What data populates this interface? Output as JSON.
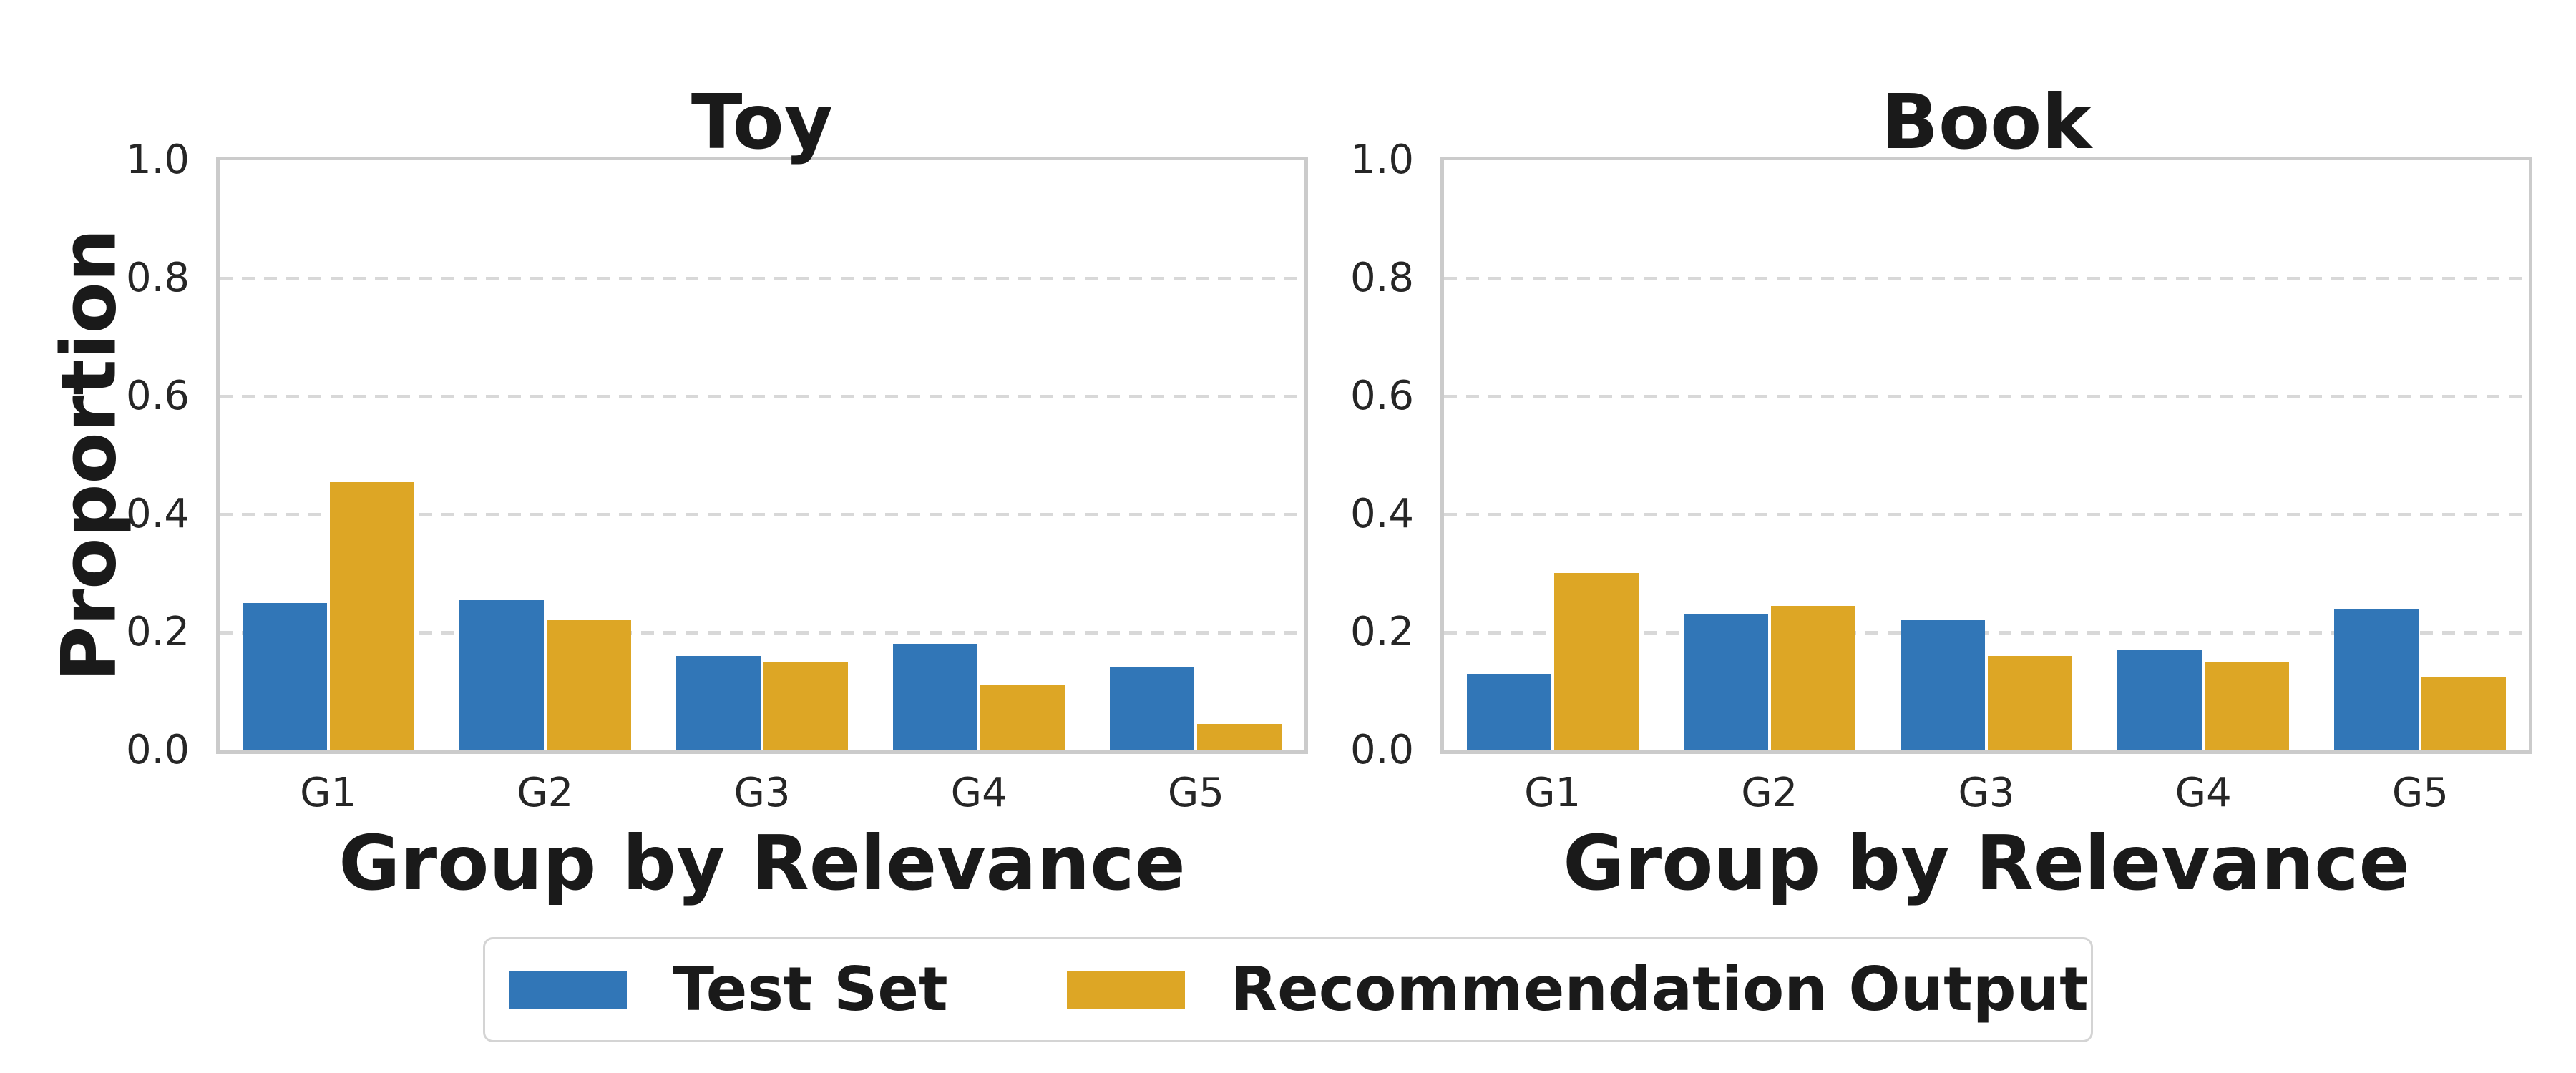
{
  "figure": {
    "background": "#ffffff",
    "text_color": "#1a1a1a",
    "spine_color": "#cbcbcb",
    "gridline_color": "#d8d8d8"
  },
  "legend": {
    "entries": [
      {
        "label": "Test Set",
        "color": "#3176B7",
        "swatch": "blue-square"
      },
      {
        "label": "Recommendation Output",
        "color": "#DDA625",
        "swatch": "gold-square"
      }
    ],
    "position": "bottom-center",
    "border_color": "#d4d4d4"
  },
  "chart_data": [
    {
      "type": "bar",
      "title": "Toy",
      "xlabel": "Group by Relevance",
      "ylabel": "Proportion",
      "categories": [
        "G1",
        "G2",
        "G3",
        "G4",
        "G5"
      ],
      "series": [
        {
          "name": "Test Set",
          "color": "#3176B7",
          "values": [
            0.25,
            0.255,
            0.16,
            0.18,
            0.14
          ]
        },
        {
          "name": "Recommendation Output",
          "color": "#DDA625",
          "values": [
            0.455,
            0.22,
            0.15,
            0.11,
            0.045
          ]
        }
      ],
      "ylim": [
        0.0,
        1.0
      ],
      "yticks": [
        "0.0",
        "0.2",
        "0.4",
        "0.6",
        "0.8",
        "1.0"
      ],
      "ytick_values": [
        0.0,
        0.2,
        0.4,
        0.6,
        0.8,
        1.0
      ],
      "grid": true,
      "grid_style": "dashed-horizontal"
    },
    {
      "type": "bar",
      "title": "Book",
      "xlabel": "Group by Relevance",
      "ylabel": "Proportion",
      "categories": [
        "G1",
        "G2",
        "G3",
        "G4",
        "G5"
      ],
      "series": [
        {
          "name": "Test Set",
          "color": "#3176B7",
          "values": [
            0.13,
            0.23,
            0.22,
            0.17,
            0.24
          ]
        },
        {
          "name": "Recommendation Output",
          "color": "#DDA625",
          "values": [
            0.3,
            0.245,
            0.16,
            0.15,
            0.125
          ]
        }
      ],
      "ylim": [
        0.0,
        1.0
      ],
      "yticks": [
        "0.0",
        "0.2",
        "0.4",
        "0.6",
        "0.8",
        "1.0"
      ],
      "ytick_values": [
        0.0,
        0.2,
        0.4,
        0.6,
        0.8,
        1.0
      ],
      "grid": true,
      "grid_style": "dashed-horizontal"
    }
  ]
}
